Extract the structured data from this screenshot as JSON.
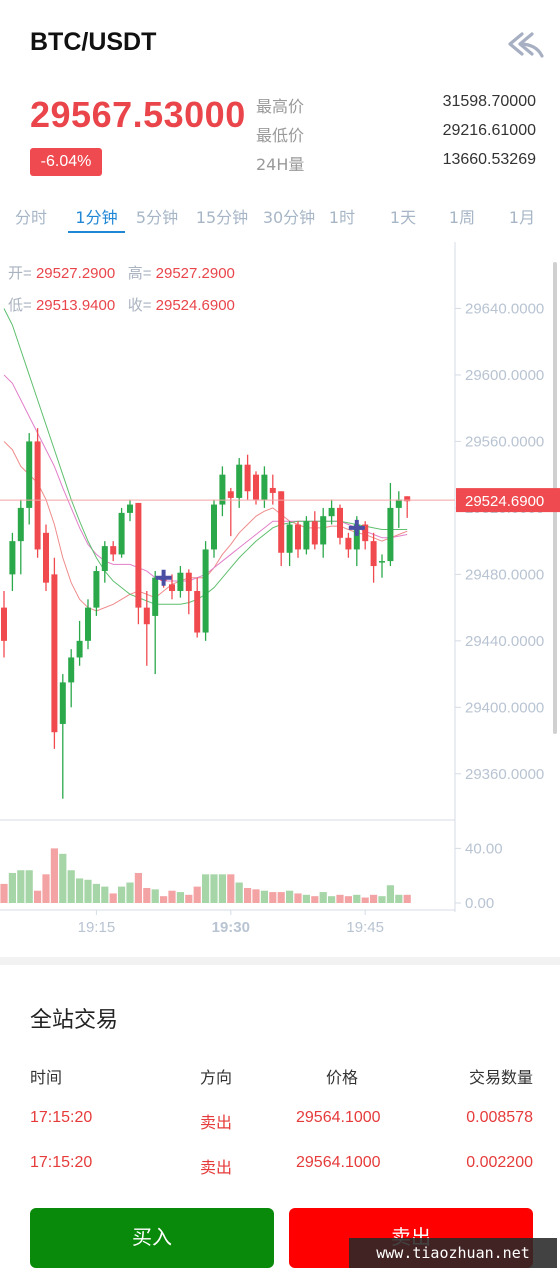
{
  "header": {
    "pair": "BTC/USDT",
    "back_icon": "double-back-arrow-icon"
  },
  "ticker": {
    "last_price": "29567.53000",
    "change": "-6.04%",
    "stats": [
      {
        "label": "最高价",
        "value": "31598.70000"
      },
      {
        "label": "最低价",
        "value": "29216.61000"
      },
      {
        "label": "24H量",
        "value": "13660.53269"
      }
    ]
  },
  "tabs": [
    {
      "label": "分时",
      "active": false
    },
    {
      "label": "1分钟",
      "active": true
    },
    {
      "label": "5分钟",
      "active": false
    },
    {
      "label": "15分钟",
      "active": false
    },
    {
      "label": "30分钟",
      "active": false
    },
    {
      "label": "1时",
      "active": false
    },
    {
      "label": "1天",
      "active": false
    },
    {
      "label": "1周",
      "active": false
    },
    {
      "label": "1月",
      "active": false
    }
  ],
  "ohlc": {
    "open_label": "开=",
    "open": "29527.2900",
    "high_label": "高=",
    "high": "29527.2900",
    "low_label": "低=",
    "low": "29513.9400",
    "close_label": "收=",
    "close": "29524.6900"
  },
  "chart_data": {
    "type": "candlestick",
    "price_axis_ticks": [
      "29640.0000",
      "29600.0000",
      "29560.0000",
      "29520.0000",
      "29480.0000",
      "29440.0000",
      "29400.0000",
      "29360.0000"
    ],
    "current_price_label": "29524.6900",
    "current_price": 29524.69,
    "ylim": [
      29334,
      29680
    ],
    "volume_axis_ticks": [
      "40.00",
      "0.00"
    ],
    "volume_ylim": [
      0,
      52
    ],
    "time_ticks": [
      "19:15",
      "19:30",
      "19:45"
    ],
    "up_color": "#2aa84a",
    "down_color": "#f04a4f",
    "candles": [
      {
        "o": 29460,
        "h": 29470,
        "l": 29430,
        "c": 29440,
        "v": 14
      },
      {
        "o": 29480,
        "h": 29505,
        "l": 29470,
        "c": 29500,
        "v": 22
      },
      {
        "o": 29500,
        "h": 29525,
        "l": 29480,
        "c": 29520,
        "v": 24
      },
      {
        "o": 29520,
        "h": 29565,
        "l": 29510,
        "c": 29560,
        "v": 24
      },
      {
        "o": 29560,
        "h": 29568,
        "l": 29490,
        "c": 29495,
        "v": 9
      },
      {
        "o": 29505,
        "h": 29510,
        "l": 29470,
        "c": 29475,
        "v": 21
      },
      {
        "o": 29480,
        "h": 29490,
        "l": 29375,
        "c": 29385,
        "v": 40
      },
      {
        "o": 29390,
        "h": 29420,
        "l": 29345,
        "c": 29415,
        "v": 36
      },
      {
        "o": 29415,
        "h": 29435,
        "l": 29400,
        "c": 29430,
        "v": 24
      },
      {
        "o": 29430,
        "h": 29452,
        "l": 29425,
        "c": 29440,
        "v": 18
      },
      {
        "o": 29440,
        "h": 29465,
        "l": 29435,
        "c": 29460,
        "v": 17
      },
      {
        "o": 29460,
        "h": 29485,
        "l": 29455,
        "c": 29482,
        "v": 14
      },
      {
        "o": 29482,
        "h": 29500,
        "l": 29475,
        "c": 29497,
        "v": 12
      },
      {
        "o": 29497,
        "h": 29500,
        "l": 29488,
        "c": 29492,
        "v": 7
      },
      {
        "o": 29492,
        "h": 29520,
        "l": 29490,
        "c": 29517,
        "v": 12
      },
      {
        "o": 29517,
        "h": 29525,
        "l": 29512,
        "c": 29522,
        "v": 15
      },
      {
        "o": 29523,
        "h": 29523,
        "l": 29450,
        "c": 29460,
        "v": 22
      },
      {
        "o": 29460,
        "h": 29470,
        "l": 29425,
        "c": 29450,
        "v": 11
      },
      {
        "o": 29455,
        "h": 29482,
        "l": 29420,
        "c": 29478,
        "v": 10
      },
      {
        "o": 29478,
        "h": 29482,
        "l": 29472,
        "c": 29476,
        "v": 5
      },
      {
        "o": 29474,
        "h": 29480,
        "l": 29465,
        "c": 29470,
        "v": 9
      },
      {
        "o": 29470,
        "h": 29485,
        "l": 29466,
        "c": 29481,
        "v": 8
      },
      {
        "o": 29481,
        "h": 29483,
        "l": 29456,
        "c": 29470,
        "v": 6
      },
      {
        "o": 29470,
        "h": 29478,
        "l": 29442,
        "c": 29445,
        "v": 12
      },
      {
        "o": 29445,
        "h": 29500,
        "l": 29440,
        "c": 29495,
        "v": 21
      },
      {
        "o": 29495,
        "h": 29525,
        "l": 29490,
        "c": 29522,
        "v": 21
      },
      {
        "o": 29522,
        "h": 29545,
        "l": 29515,
        "c": 29540,
        "v": 21
      },
      {
        "o": 29530,
        "h": 29532,
        "l": 29503,
        "c": 29526,
        "v": 21
      },
      {
        "o": 29526,
        "h": 29550,
        "l": 29520,
        "c": 29546,
        "v": 15
      },
      {
        "o": 29546,
        "h": 29552,
        "l": 29525,
        "c": 29530,
        "v": 11
      },
      {
        "o": 29540,
        "h": 29542,
        "l": 29522,
        "c": 29525,
        "v": 10
      },
      {
        "o": 29525,
        "h": 29545,
        "l": 29520,
        "c": 29540,
        "v": 9
      },
      {
        "o": 29532,
        "h": 29540,
        "l": 29522,
        "c": 29529,
        "v": 8
      },
      {
        "o": 29530,
        "h": 29530,
        "l": 29485,
        "c": 29493,
        "v": 8
      },
      {
        "o": 29493,
        "h": 29512,
        "l": 29485,
        "c": 29510,
        "v": 9
      },
      {
        "o": 29510,
        "h": 29512,
        "l": 29490,
        "c": 29495,
        "v": 7
      },
      {
        "o": 29495,
        "h": 29515,
        "l": 29492,
        "c": 29512,
        "v": 6
      },
      {
        "o": 29512,
        "h": 29518,
        "l": 29495,
        "c": 29498,
        "v": 5
      },
      {
        "o": 29498,
        "h": 29520,
        "l": 29490,
        "c": 29515,
        "v": 8
      },
      {
        "o": 29515,
        "h": 29525,
        "l": 29510,
        "c": 29520,
        "v": 5
      },
      {
        "o": 29520,
        "h": 29522,
        "l": 29498,
        "c": 29502,
        "v": 6
      },
      {
        "o": 29502,
        "h": 29505,
        "l": 29490,
        "c": 29495,
        "v": 5
      },
      {
        "o": 29495,
        "h": 29515,
        "l": 29485,
        "c": 29510,
        "v": 6
      },
      {
        "o": 29510,
        "h": 29512,
        "l": 29495,
        "c": 29500,
        "v": 4
      },
      {
        "o": 29500,
        "h": 29505,
        "l": 29475,
        "c": 29485,
        "v": 6
      },
      {
        "o": 29488,
        "h": 29492,
        "l": 29478,
        "c": 29488,
        "v": 5
      },
      {
        "o": 29488,
        "h": 29535,
        "l": 29485,
        "c": 29520,
        "v": 13
      },
      {
        "o": 29520,
        "h": 29530,
        "l": 29508,
        "c": 29525,
        "v": 6
      },
      {
        "o": 29527,
        "h": 29527,
        "l": 29514,
        "c": 29524,
        "v": 6
      }
    ],
    "ma_lines": [
      {
        "color": "#ef8b8b",
        "values": [
          29560,
          29555,
          29545,
          29540,
          29535,
          29525,
          29510,
          29490,
          29475,
          29465,
          29460,
          29458,
          29460,
          29462,
          29465,
          29468,
          29470,
          29468,
          29466,
          29470,
          29474,
          29476,
          29478,
          29478,
          29478,
          29484,
          29492,
          29498,
          29505,
          29510,
          29515,
          29518,
          29520,
          29516,
          29512,
          29510,
          29508,
          29508,
          29508,
          29509,
          29509,
          29507,
          29505,
          29504,
          29502,
          29500,
          29502,
          29504,
          29506
        ]
      },
      {
        "color": "#e17fc9",
        "values": [
          29600,
          29595,
          29585,
          29575,
          29565,
          29555,
          29545,
          29532,
          29520,
          29508,
          29498,
          29492,
          29488,
          29486,
          29486,
          29486,
          29484,
          29482,
          29478,
          29476,
          29476,
          29476,
          29476,
          29478,
          29480,
          29484,
          29488,
          29492,
          29496,
          29500,
          29504,
          29508,
          29512,
          29512,
          29512,
          29512,
          29512,
          29512,
          29512,
          29512,
          29512,
          29510,
          29508,
          29506,
          29504,
          29502,
          29502,
          29503,
          29504
        ]
      },
      {
        "color": "#5fbf6f",
        "values": [
          29640,
          29630,
          29615,
          29600,
          29585,
          29570,
          29555,
          29540,
          29525,
          29512,
          29500,
          29490,
          29482,
          29476,
          29472,
          29468,
          29466,
          29464,
          29462,
          29462,
          29462,
          29462,
          29463,
          29465,
          29468,
          29472,
          29478,
          29484,
          29490,
          29495,
          29500,
          29504,
          29508,
          29510,
          29511,
          29512,
          29512,
          29512,
          29512,
          29512,
          29512,
          29511,
          29510,
          29509,
          29508,
          29507,
          29507,
          29507,
          29507
        ]
      }
    ],
    "markers": [
      {
        "index": 19,
        "price": 29478,
        "color": "#4a4fa3"
      },
      {
        "index": 42,
        "price": 29508,
        "color": "#4a4fa3"
      }
    ]
  },
  "trades": {
    "title": "全站交易",
    "columns": [
      "时间",
      "方向",
      "价格",
      "交易数量"
    ],
    "rows": [
      {
        "time": "17:15:20",
        "side": "卖出",
        "price": "29564.1000",
        "amount": "0.008578"
      },
      {
        "time": "17:15:20",
        "side": "卖出",
        "price": "29564.1000",
        "amount": "0.002200"
      }
    ]
  },
  "actions": {
    "buy": "买入",
    "sell": "卖出"
  },
  "watermark": "www.tiaozhuan.net"
}
